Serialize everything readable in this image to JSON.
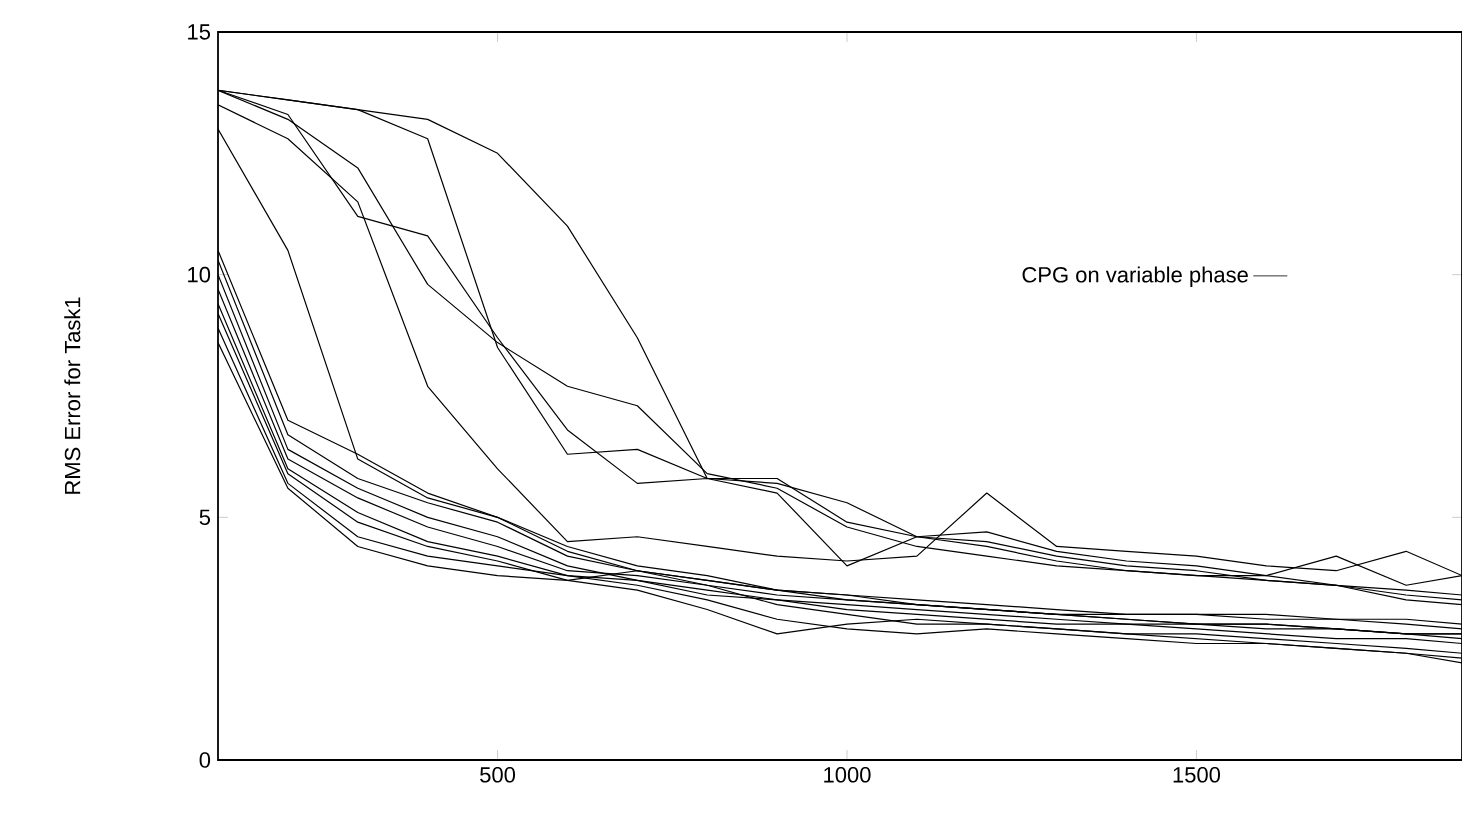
{
  "chart_data": {
    "type": "line",
    "ylabel": "RMS Error for Task1",
    "legend": "right",
    "marker": "none",
    "line_style": "solid",
    "xlim": [
      100,
      1880
    ],
    "ylim": [
      0,
      15
    ],
    "xticks": [
      500,
      1000,
      1500
    ],
    "yticks": [
      0,
      5,
      10,
      15
    ],
    "x": [
      100,
      200,
      300,
      400,
      500,
      600,
      700,
      800,
      900,
      1000,
      1100,
      1200,
      1300,
      1400,
      1500,
      1600,
      1700,
      1800,
      1880
    ],
    "series": [
      {
        "name": "CPG on variable phase",
        "color": "#000000",
        "values": [
          13.8,
          13.6,
          13.4,
          13.2,
          12.5,
          11.0,
          8.7,
          5.8,
          5.7,
          5.3,
          4.6,
          4.4,
          4.1,
          3.9,
          3.8,
          3.8,
          3.6,
          3.3,
          3.2
        ]
      },
      {
        "color": "#000000",
        "values": [
          13.8,
          13.6,
          13.4,
          12.8,
          8.5,
          6.3,
          6.4,
          5.8,
          5.8,
          4.9,
          4.6,
          4.5,
          4.2,
          4.0,
          3.9,
          3.7,
          3.6,
          3.5,
          3.4
        ]
      },
      {
        "color": "#000000",
        "values": [
          13.8,
          13.2,
          12.2,
          9.8,
          8.6,
          7.7,
          7.3,
          5.9,
          5.6,
          4.8,
          4.4,
          4.2,
          4.0,
          3.9,
          3.8,
          3.7,
          3.6,
          3.4,
          3.3
        ]
      },
      {
        "color": "#000000",
        "values": [
          13.8,
          13.3,
          11.2,
          10.8,
          8.7,
          6.8,
          5.7,
          5.8,
          5.5,
          4.0,
          4.6,
          4.7,
          4.3,
          4.1,
          4.0,
          3.8,
          4.2,
          3.6,
          3.8
        ]
      },
      {
        "color": "#000000",
        "values": [
          13.5,
          12.8,
          11.5,
          7.7,
          6.0,
          4.5,
          4.6,
          4.4,
          4.2,
          4.1,
          4.2,
          5.5,
          4.4,
          4.3,
          4.2,
          4.0,
          3.9,
          4.3,
          3.8
        ]
      },
      {
        "color": "#000000",
        "values": [
          13.0,
          10.5,
          6.2,
          5.4,
          5.0,
          4.3,
          3.9,
          3.7,
          3.5,
          3.3,
          3.2,
          3.1,
          3.0,
          2.9,
          2.8,
          2.8,
          2.7,
          2.6,
          2.5
        ]
      },
      {
        "color": "#000000",
        "values": [
          10.5,
          7.0,
          6.3,
          5.5,
          5.0,
          4.4,
          4.0,
          3.8,
          3.5,
          3.4,
          3.3,
          3.2,
          3.1,
          3.0,
          3.0,
          2.9,
          2.9,
          2.8,
          2.7
        ]
      },
      {
        "color": "#000000",
        "values": [
          10.3,
          6.7,
          5.8,
          5.3,
          4.9,
          4.2,
          3.9,
          3.6,
          3.4,
          3.3,
          3.2,
          3.1,
          3.0,
          3.0,
          3.0,
          3.0,
          2.9,
          2.9,
          2.8
        ]
      },
      {
        "color": "#000000",
        "values": [
          10.0,
          6.4,
          5.6,
          5.0,
          4.6,
          4.0,
          3.7,
          3.5,
          3.3,
          3.1,
          3.0,
          2.9,
          2.8,
          2.8,
          2.7,
          2.6,
          2.5,
          2.5,
          2.4
        ]
      },
      {
        "color": "#000000",
        "values": [
          9.7,
          6.2,
          5.4,
          4.8,
          4.4,
          3.9,
          3.8,
          3.6,
          3.2,
          3.0,
          2.8,
          2.8,
          2.7,
          2.6,
          2.6,
          2.5,
          2.4,
          2.3,
          2.2
        ]
      },
      {
        "color": "#000000",
        "values": [
          9.4,
          6.0,
          5.1,
          4.5,
          4.2,
          3.8,
          3.6,
          3.3,
          2.9,
          2.7,
          2.6,
          2.7,
          2.6,
          2.5,
          2.4,
          2.4,
          2.3,
          2.2,
          2.1
        ]
      },
      {
        "color": "#000000",
        "values": [
          9.2,
          5.9,
          4.9,
          4.4,
          4.1,
          3.7,
          3.5,
          3.1,
          2.6,
          2.8,
          2.9,
          2.8,
          2.7,
          2.6,
          2.5,
          2.4,
          2.3,
          2.2,
          2.0
        ]
      },
      {
        "color": "#000000",
        "values": [
          8.9,
          5.7,
          4.6,
          4.2,
          4.0,
          3.8,
          3.7,
          3.4,
          3.3,
          3.2,
          3.1,
          3.0,
          2.9,
          2.8,
          2.8,
          2.7,
          2.7,
          2.6,
          2.6
        ]
      },
      {
        "color": "#000000",
        "values": [
          8.6,
          5.6,
          4.4,
          4.0,
          3.8,
          3.7,
          3.9,
          3.7,
          3.5,
          3.4,
          3.2,
          3.1,
          3.0,
          2.9,
          2.8,
          2.8,
          2.7,
          2.6,
          2.6
        ]
      }
    ]
  }
}
